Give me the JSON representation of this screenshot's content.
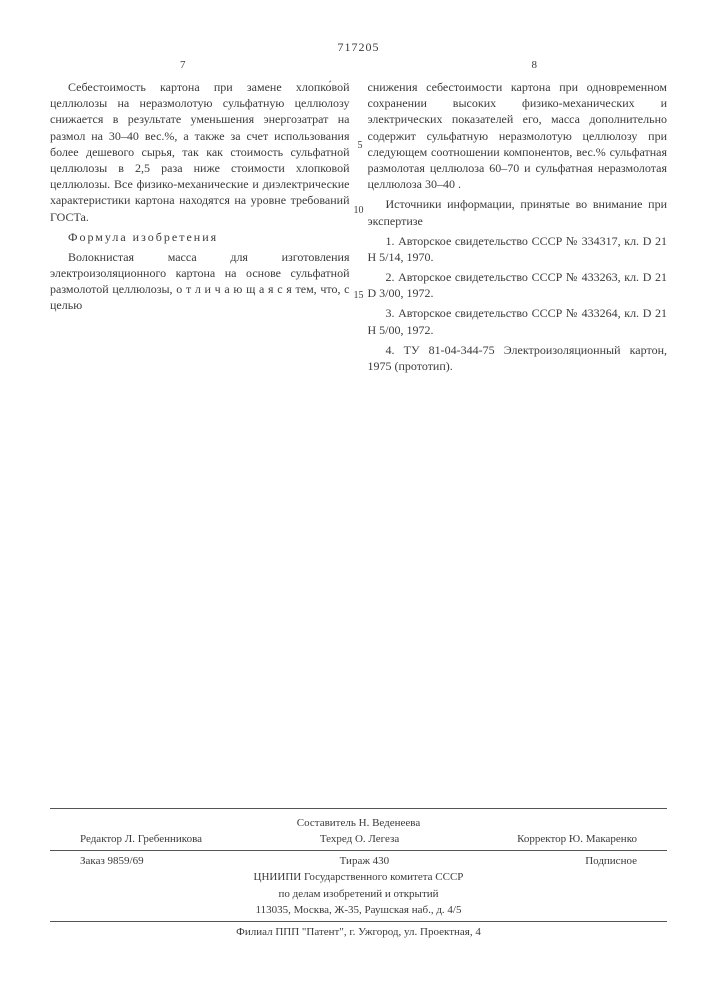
{
  "patent_number": "717205",
  "page_left_num": "7",
  "page_right_num": "8",
  "left_col": {
    "para1": "Себестоимость картона при замене хлопко́вой целлюлозы на неразмолотую сульфатную целлюлозу снижается в результате уменьшения энергозатрат на размол на 30–40 вес.%, а также за счет использования более дешевого сырья, так как стоимость сульфатной целлюлозы в 2,5 раза ниже стоимости хлопковой целлюлозы. Все физико-механические и диэлектрические характеристики картона находятся на уровне требований ГОСТа.",
    "formula_title": "Формула изобретения",
    "para2": "Волокнистая масса для изготовления электроизоляционного картона на основе сульфатной размолотой целлюлозы, о т л и ч а ю щ а я с я  тем, что, с целью"
  },
  "right_col": {
    "para1": "снижения себестоимости картона при одновременном сохранении высоких физико-механических и электрических показателей его, масса дополнительно содержит сульфатную неразмолотую целлюлозу при следующем соотношении компонентов, вес.% сульфатная размолотая целлюлоза 60–70 и сульфатная неразмолотая целлюлоза 30–40 .",
    "sources_title": "Источники информации, принятые во внимание при экспертизе",
    "ref1": "1. Авторское свидетельство СССР № 334317, кл. D 21 H 5/14, 1970.",
    "ref2": "2. Авторское свидетельство СССР № 433263, кл. D 21 D 3/00, 1972.",
    "ref3": "3. Авторское свидетельство СССР № 433264, кл. D 21 H 5/00, 1972.",
    "ref4": "4. ТУ 81-04-344-75 Электроизоляционный картон, 1975 (прототип)."
  },
  "line_numbers": {
    "n5": "5",
    "n10": "10",
    "n15": "15"
  },
  "footer": {
    "compiler": "Составитель Н. Веденеева",
    "editor": "Редактор Л. Гребенникова",
    "tech": "Техред О. Легеза",
    "corrector": "Корректор Ю. Макаренко",
    "order": "Заказ 9859/69",
    "tirage": "Тираж 430",
    "subscription": "Подписное",
    "org1": "ЦНИИПИ Государственного комитета СССР",
    "org2": "по делам изобретений и открытий",
    "address": "113035, Москва, Ж-35, Раушская наб., д. 4/5",
    "branch": "Филиал ППП \"Патент\", г. Ужгород, ул. Проектная, 4"
  }
}
